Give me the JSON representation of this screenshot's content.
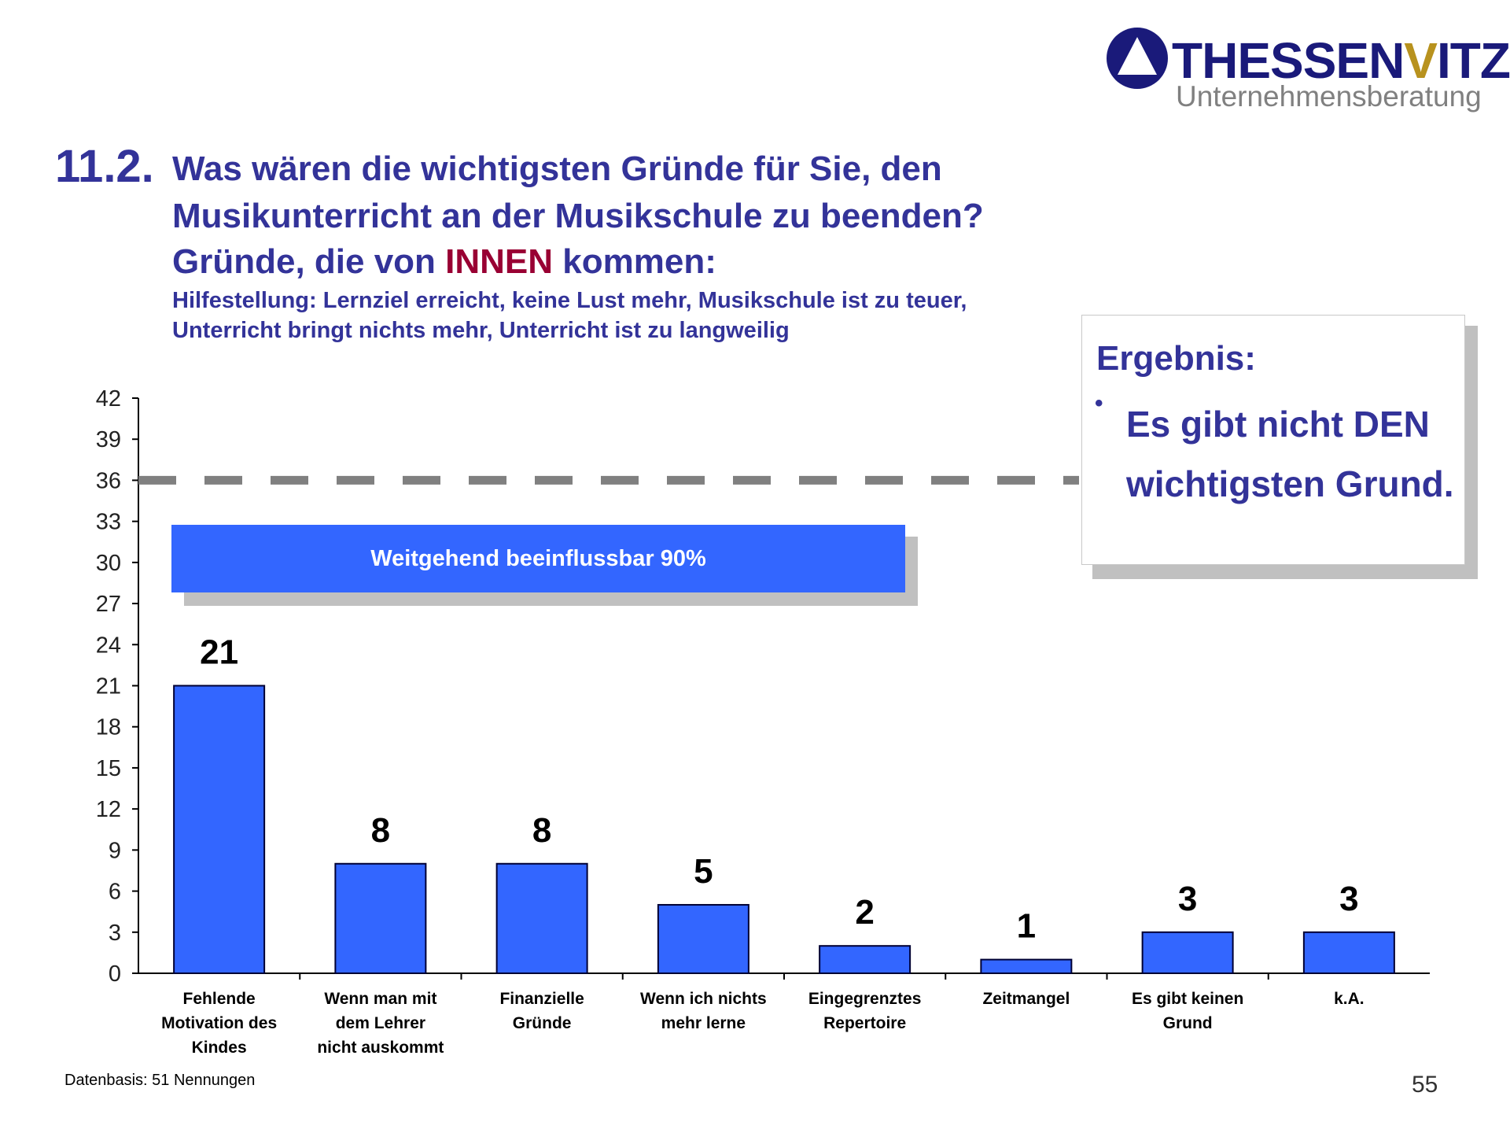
{
  "logo": {
    "name_part1": "THESSEN",
    "name_v": "V",
    "name_part2": "ITZ",
    "subtitle": "Unternehmensberatung"
  },
  "title": {
    "number": "11.2.",
    "line1": "Was wären die wichtigsten Gründe für Sie, den",
    "line2": "Musikunterricht an der Musikschule zu beenden?",
    "line3_pre": "Gründe, die von ",
    "line3_highlight": "INNEN",
    "line3_post": " kommen:",
    "hint1": "Hilfestellung: Lernziel erreicht, keine Lust mehr, Musikschule ist zu teuer,",
    "hint2": "Unterricht bringt nichts mehr, Unterricht ist zu langweilig"
  },
  "banner": {
    "label": "Weitgehend beeinflussbar 90%"
  },
  "result_box": {
    "title": "Ergebnis:",
    "bullet": "•",
    "text": "Es gibt nicht DEN wichtigsten Grund."
  },
  "footer": {
    "note": "Datenbasis: 51 Nennungen",
    "page": "55"
  },
  "colors": {
    "bar": "#3366ff",
    "title": "#333399",
    "highlight": "#990033",
    "dashed": "#808080"
  },
  "chart_data": {
    "type": "bar",
    "categories": [
      [
        "Fehlende",
        "Motivation des",
        "Kindes"
      ],
      [
        "Wenn man mit",
        "dem Lehrer",
        "nicht auskommt"
      ],
      [
        "Finanzielle",
        "Gründe"
      ],
      [
        "Wenn ich nichts",
        "mehr lerne"
      ],
      [
        "Eingegrenztes",
        "Repertoire"
      ],
      [
        "Zeitmangel"
      ],
      [
        "Es gibt keinen",
        "Grund"
      ],
      [
        "k.A."
      ]
    ],
    "values": [
      21,
      8,
      8,
      5,
      2,
      1,
      3,
      3
    ],
    "ylim": [
      0,
      42
    ],
    "yticks": [
      0,
      3,
      6,
      9,
      12,
      15,
      18,
      21,
      24,
      27,
      30,
      33,
      36,
      39,
      42
    ],
    "reference_line": 36,
    "xlabel": "",
    "ylabel": "",
    "grid": false
  }
}
